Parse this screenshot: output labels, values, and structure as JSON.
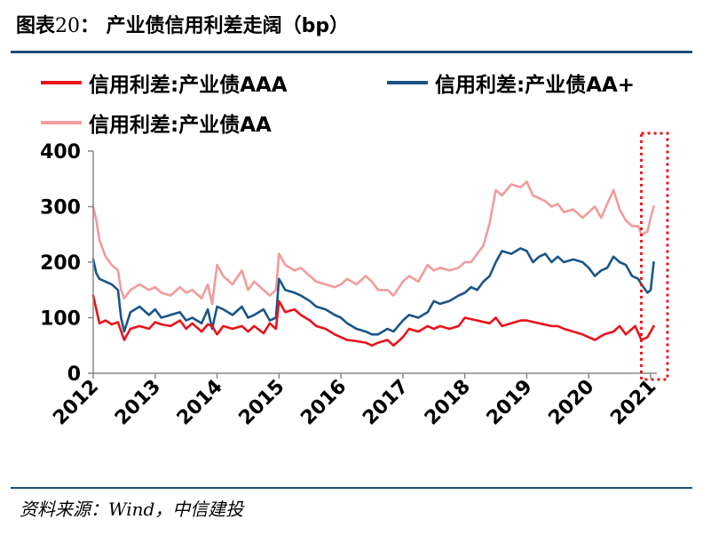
{
  "header": {
    "prefix": "图表",
    "number": "20",
    "suffix": "：  产业债信用利差走阔（bp）"
  },
  "source": "资料来源：Wind，中信建投",
  "colors": {
    "AAA": "#e8141b",
    "AA+": "#1a5587",
    "AA": "#f19c9d",
    "highlight_box": "#e8141b",
    "rule": "#1f4e79"
  },
  "chart_data": {
    "type": "line",
    "title": "产业债信用利差走阔（bp）",
    "xlabel": "",
    "ylabel": "",
    "ylim": [
      0,
      400
    ],
    "y_ticks": [
      "0",
      "100",
      "200",
      "300",
      "400"
    ],
    "x_ticks": [
      "2012",
      "2013",
      "2014",
      "2015",
      "2016",
      "2017",
      "2018",
      "2019",
      "2020",
      "2021"
    ],
    "xlim": [
      2012.0,
      2021.1
    ],
    "grid": false,
    "legend_position": "top",
    "highlight_region": {
      "x_range": [
        2020.85,
        2021.1
      ],
      "style": "dotted red box"
    },
    "series": [
      {
        "name": "信用利差:产业债AAA",
        "color_key": "AAA",
        "x": [
          2012.0,
          2012.1,
          2012.2,
          2012.3,
          2012.4,
          2012.5,
          2012.6,
          2012.75,
          2012.9,
          2013.0,
          2013.1,
          2013.25,
          2013.4,
          2013.5,
          2013.6,
          2013.75,
          2013.85,
          2013.92,
          2014.0,
          2014.1,
          2014.25,
          2014.4,
          2014.5,
          2014.6,
          2014.75,
          2014.85,
          2014.95,
          2015.0,
          2015.1,
          2015.25,
          2015.35,
          2015.5,
          2015.6,
          2015.75,
          2015.9,
          2016.0,
          2016.1,
          2016.25,
          2016.4,
          2016.5,
          2016.6,
          2016.75,
          2016.85,
          2017.0,
          2017.1,
          2017.25,
          2017.4,
          2017.5,
          2017.6,
          2017.75,
          2017.9,
          2018.0,
          2018.2,
          2018.4,
          2018.5,
          2018.6,
          2018.75,
          2018.9,
          2019.0,
          2019.2,
          2019.4,
          2019.5,
          2019.6,
          2019.75,
          2019.9,
          2020.0,
          2020.1,
          2020.25,
          2020.4,
          2020.5,
          2020.6,
          2020.75,
          2020.85,
          2020.95,
          2021.0,
          2021.05
        ],
        "y": [
          140,
          90,
          95,
          88,
          92,
          60,
          80,
          85,
          80,
          92,
          88,
          85,
          95,
          80,
          90,
          75,
          88,
          85,
          70,
          85,
          80,
          85,
          75,
          85,
          72,
          90,
          80,
          130,
          110,
          115,
          105,
          95,
          85,
          80,
          70,
          65,
          60,
          58,
          55,
          50,
          55,
          60,
          50,
          65,
          80,
          75,
          85,
          80,
          85,
          80,
          85,
          100,
          95,
          90,
          100,
          85,
          90,
          95,
          95,
          90,
          85,
          85,
          80,
          75,
          70,
          65,
          60,
          70,
          75,
          85,
          70,
          85,
          60,
          65,
          75,
          85
        ]
      },
      {
        "name": "信用利差:产业债AA+",
        "color_key": "AA+",
        "x": [
          2012.0,
          2012.05,
          2012.1,
          2012.2,
          2012.3,
          2012.4,
          2012.45,
          2012.5,
          2012.6,
          2012.75,
          2012.9,
          2013.0,
          2013.1,
          2013.25,
          2013.4,
          2013.5,
          2013.6,
          2013.75,
          2013.85,
          2013.92,
          2014.0,
          2014.1,
          2014.25,
          2014.4,
          2014.5,
          2014.6,
          2014.75,
          2014.85,
          2014.95,
          2015.0,
          2015.1,
          2015.25,
          2015.35,
          2015.5,
          2015.6,
          2015.75,
          2015.9,
          2016.0,
          2016.1,
          2016.25,
          2016.4,
          2016.5,
          2016.6,
          2016.75,
          2016.85,
          2017.0,
          2017.1,
          2017.25,
          2017.4,
          2017.5,
          2017.6,
          2017.75,
          2017.9,
          2018.0,
          2018.1,
          2018.2,
          2018.3,
          2018.4,
          2018.5,
          2018.6,
          2018.75,
          2018.9,
          2019.0,
          2019.1,
          2019.2,
          2019.3,
          2019.4,
          2019.5,
          2019.6,
          2019.75,
          2019.9,
          2020.0,
          2020.1,
          2020.2,
          2020.3,
          2020.4,
          2020.5,
          2020.6,
          2020.7,
          2020.8,
          2020.85,
          2020.95,
          2021.0,
          2021.05
        ],
        "y": [
          205,
          180,
          170,
          165,
          160,
          150,
          100,
          75,
          110,
          120,
          105,
          115,
          100,
          105,
          110,
          95,
          100,
          90,
          115,
          80,
          120,
          115,
          105,
          120,
          100,
          105,
          115,
          95,
          100,
          170,
          150,
          145,
          140,
          130,
          120,
          115,
          105,
          100,
          90,
          80,
          75,
          70,
          70,
          80,
          75,
          95,
          105,
          100,
          110,
          130,
          125,
          130,
          140,
          145,
          155,
          150,
          165,
          175,
          200,
          220,
          215,
          225,
          220,
          200,
          210,
          215,
          200,
          210,
          200,
          205,
          200,
          190,
          175,
          185,
          190,
          210,
          200,
          195,
          175,
          170,
          160,
          145,
          150,
          200
        ]
      },
      {
        "name": "信用利差:产业债AA",
        "color_key": "AA",
        "x": [
          2012.0,
          2012.05,
          2012.1,
          2012.2,
          2012.3,
          2012.4,
          2012.45,
          2012.5,
          2012.6,
          2012.75,
          2012.9,
          2013.0,
          2013.1,
          2013.25,
          2013.4,
          2013.5,
          2013.6,
          2013.75,
          2013.85,
          2013.92,
          2014.0,
          2014.1,
          2014.25,
          2014.4,
          2014.5,
          2014.6,
          2014.75,
          2014.85,
          2014.95,
          2015.0,
          2015.1,
          2015.25,
          2015.35,
          2015.5,
          2015.6,
          2015.75,
          2015.9,
          2016.0,
          2016.1,
          2016.25,
          2016.4,
          2016.5,
          2016.6,
          2016.75,
          2016.85,
          2017.0,
          2017.1,
          2017.25,
          2017.4,
          2017.5,
          2017.6,
          2017.75,
          2017.9,
          2018.0,
          2018.1,
          2018.2,
          2018.3,
          2018.4,
          2018.5,
          2018.6,
          2018.75,
          2018.9,
          2019.0,
          2019.1,
          2019.2,
          2019.3,
          2019.4,
          2019.5,
          2019.6,
          2019.75,
          2019.9,
          2020.0,
          2020.1,
          2020.2,
          2020.3,
          2020.4,
          2020.5,
          2020.6,
          2020.7,
          2020.8,
          2020.85,
          2020.95,
          2021.0,
          2021.05
        ],
        "y": [
          300,
          275,
          240,
          210,
          195,
          185,
          150,
          135,
          150,
          160,
          150,
          155,
          145,
          140,
          155,
          145,
          150,
          135,
          160,
          125,
          195,
          175,
          160,
          185,
          150,
          165,
          150,
          140,
          150,
          215,
          195,
          185,
          190,
          175,
          165,
          160,
          155,
          160,
          170,
          160,
          175,
          165,
          150,
          150,
          140,
          165,
          175,
          165,
          195,
          185,
          190,
          185,
          190,
          200,
          200,
          215,
          230,
          270,
          330,
          320,
          340,
          335,
          345,
          320,
          315,
          310,
          300,
          305,
          290,
          295,
          280,
          290,
          300,
          280,
          305,
          330,
          295,
          275,
          265,
          265,
          250,
          255,
          280,
          300
        ]
      }
    ]
  }
}
